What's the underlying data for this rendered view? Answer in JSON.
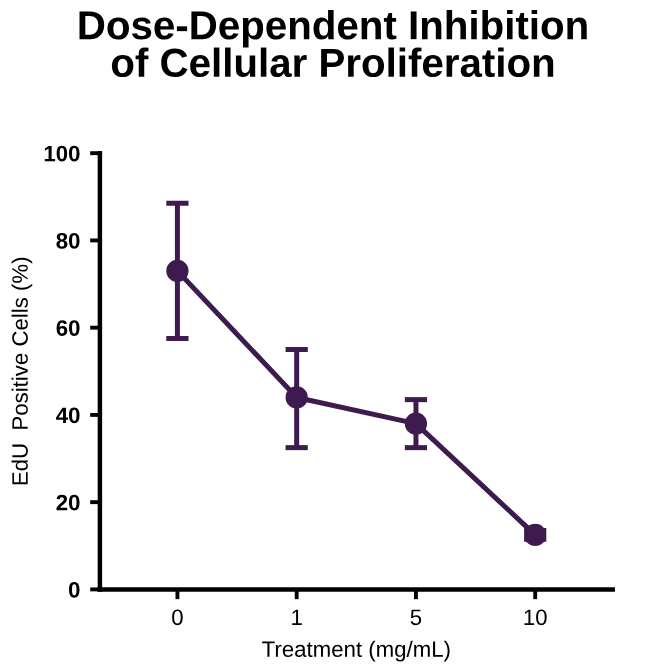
{
  "chart_data": {
    "type": "line",
    "title": "Dose-Dependent Inhibition\nof Cellular Proliferation",
    "xlabel": "Treatment (mg/mL)",
    "ylabel": "EdU  Positive Cells (%)",
    "categories": [
      "0",
      "1",
      "5",
      "10"
    ],
    "series": [
      {
        "color": "#3d1b4f",
        "values": [
          73,
          44,
          38,
          12.5
        ],
        "errors": [
          [
            57.5,
            88.5
          ],
          [
            32.5,
            55
          ],
          [
            32.5,
            43.5
          ],
          [
            11.5,
            13.5
          ]
        ]
      }
    ],
    "ylim": [
      0,
      100
    ],
    "yticks": [
      0,
      20,
      40,
      60,
      80,
      100
    ],
    "grid": false,
    "legend": false,
    "marker": "circle",
    "line_style": "solid"
  }
}
